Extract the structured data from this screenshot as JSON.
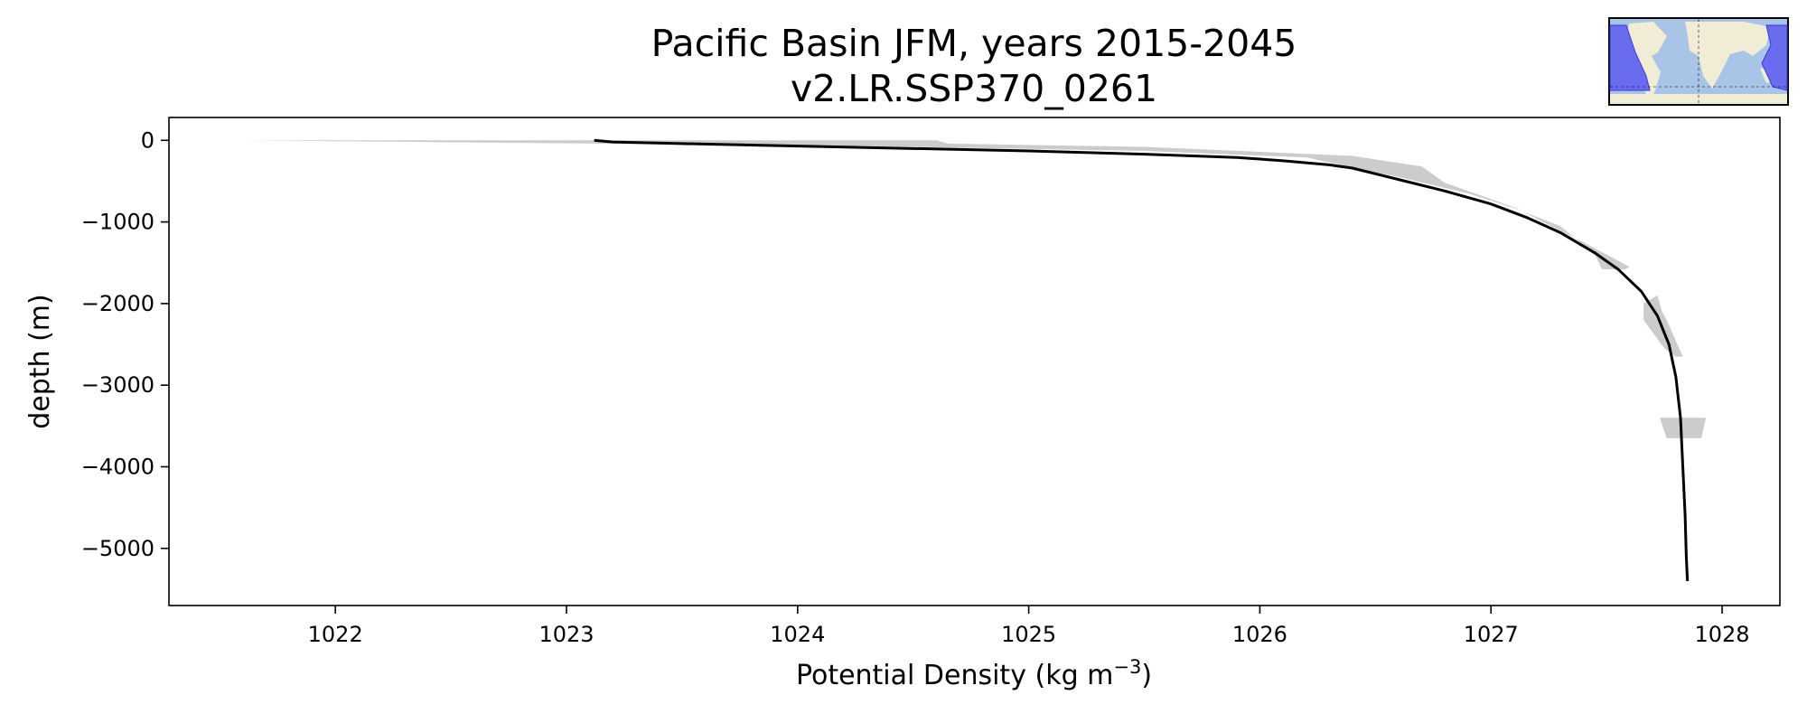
{
  "chart_data": {
    "type": "line",
    "title": "Pacific Basin JFM, years 2015-2045",
    "subtitle": "v2.LR.SSP370_0261",
    "xlabel": "Potential Density (kg m",
    "xlabel_sup": "−3",
    "xlabel_end": ")",
    "ylabel": "depth (m)",
    "xlim": [
      1021.28,
      1028.25
    ],
    "ylim": [
      -5700,
      280
    ],
    "xticks": [
      1022,
      1023,
      1024,
      1025,
      1026,
      1027,
      1028
    ],
    "xtick_labels": [
      "1022",
      "1023",
      "1024",
      "1025",
      "1026",
      "1027",
      "1028"
    ],
    "yticks": [
      0,
      -1000,
      -2000,
      -3000,
      -4000,
      -5000
    ],
    "ytick_labels": [
      "0",
      "−1000",
      "−2000",
      "−3000",
      "−4000",
      "−5000"
    ],
    "grid": false,
    "colors": {
      "mean_line": "#000000",
      "spread_band": "#cccccc"
    },
    "series": [
      {
        "values_x": [
          1023.12,
          1023.2,
          1023.5,
          1024.0,
          1024.5,
          1025.0,
          1025.5,
          1025.9,
          1026.1,
          1026.3,
          1026.4,
          1026.6,
          1026.8,
          1027.0,
          1027.15,
          1027.3,
          1027.45,
          1027.55,
          1027.65,
          1027.72,
          1027.77,
          1027.8,
          1027.82,
          1027.83,
          1027.84,
          1027.845,
          1027.85
        ],
        "values_y": [
          0,
          -20,
          -40,
          -70,
          -100,
          -130,
          -170,
          -210,
          -250,
          -300,
          -340,
          -480,
          -620,
          -780,
          -940,
          -1130,
          -1380,
          -1580,
          -1850,
          -2150,
          -2500,
          -2900,
          -3400,
          -4000,
          -4600,
          -5100,
          -5400
        ]
      }
    ],
    "bands": [
      {
        "left_x": [
          1021.6,
          1024.3,
          1025.5,
          1026.2,
          1026.6,
          1026.9,
          1027.1,
          1027.3,
          1027.45,
          1027.48
        ],
        "left_y": [
          0,
          -70,
          -130,
          -210,
          -450,
          -650,
          -830,
          -1050,
          -1400,
          -1580
        ],
        "right_x": [
          1021.6,
          1023.2,
          1024.6,
          1024.65,
          1025.5,
          1026.4,
          1026.7,
          1026.8,
          1027.1,
          1027.4,
          1027.6,
          1027.58
        ],
        "right_y": [
          0,
          0,
          0,
          -40,
          -80,
          -190,
          -320,
          -520,
          -820,
          -1250,
          -1550,
          -1580
        ]
      },
      {
        "left_x": [
          1027.66,
          1027.66,
          1027.75,
          1027.8
        ],
        "left_y": [
          -2000,
          -2200,
          -2550,
          -2650
        ],
        "right_x": [
          1027.72,
          1027.74,
          1027.76,
          1027.83
        ],
        "right_y": [
          -1900,
          -2100,
          -2200,
          -2650
        ]
      },
      {
        "left_x": [
          1027.73,
          1027.76
        ],
        "left_y": [
          -3400,
          -3650
        ],
        "right_x": [
          1027.93,
          1027.91
        ],
        "right_y": [
          -3400,
          -3650
        ]
      }
    ]
  },
  "inset_map": {
    "description_colors": {
      "ocean": "#a8c4e6",
      "land": "#f0ecd6",
      "basin": "#6a6cf0",
      "border": "#000000"
    }
  }
}
